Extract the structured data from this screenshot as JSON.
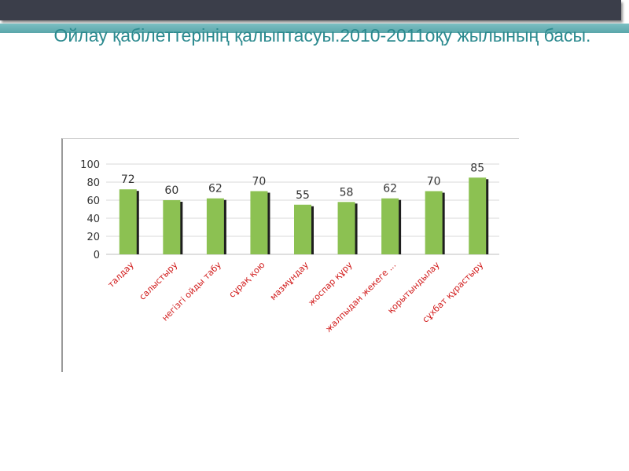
{
  "slide": {
    "title": "Ойлау қабілеттерінің қалыптасуы.2010-2011оқу жылының басы."
  },
  "colors": {
    "top_bar": "#3b3e4a",
    "accent_teal": "#5aa6aa",
    "title_text": "#2c8a8f",
    "bar_fill": "#8cc152",
    "bar_shadow": "#1e1e1e",
    "category_label": "#d11a1a"
  },
  "chart_data": {
    "type": "bar",
    "title": "",
    "xlabel": "",
    "ylabel": "",
    "ylim": [
      0,
      100
    ],
    "yticks": [
      0,
      20,
      40,
      60,
      80,
      100
    ],
    "grid": true,
    "legend": "none",
    "categories": [
      "талдау",
      "салыстыру",
      "негізгі ойды табу",
      "сұрақ қою",
      "мазмұндау",
      "жоспар құру",
      "жалпыдан жекеге ...",
      "қорытындылау",
      "сұхбат құрастыру"
    ],
    "values": [
      72,
      60,
      62,
      70,
      55,
      58,
      62,
      70,
      85
    ]
  }
}
